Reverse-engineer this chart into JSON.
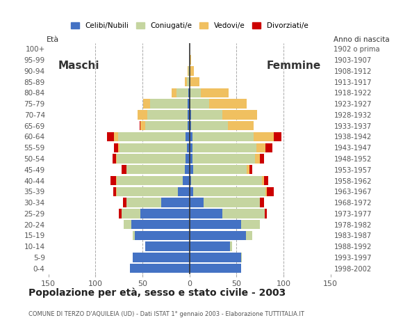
{
  "age_groups": [
    "0-4",
    "5-9",
    "10-14",
    "15-19",
    "20-24",
    "25-29",
    "30-34",
    "35-39",
    "40-44",
    "45-49",
    "50-54",
    "55-59",
    "60-64",
    "65-69",
    "70-74",
    "75-79",
    "80-84",
    "85-89",
    "90-94",
    "95-99",
    "100+"
  ],
  "birth_years": [
    "1998-2002",
    "1993-1997",
    "1988-1992",
    "1983-1987",
    "1978-1982",
    "1973-1977",
    "1968-1972",
    "1963-1967",
    "1958-1962",
    "1953-1957",
    "1948-1952",
    "1943-1947",
    "1938-1942",
    "1933-1937",
    "1928-1932",
    "1923-1927",
    "1918-1922",
    "1913-1917",
    "1908-1912",
    "1903-1907",
    "1902 o prima"
  ],
  "males": {
    "celibi": [
      63,
      60,
      47,
      58,
      62,
      52,
      30,
      12,
      7,
      5,
      4,
      3,
      4,
      2,
      2,
      2,
      1,
      0,
      0,
      0,
      0
    ],
    "coniugati": [
      0,
      0,
      0,
      2,
      8,
      20,
      37,
      65,
      70,
      62,
      73,
      71,
      72,
      45,
      43,
      40,
      13,
      3,
      1,
      0,
      0
    ],
    "vedovi": [
      0,
      0,
      0,
      0,
      0,
      0,
      0,
      1,
      1,
      0,
      1,
      2,
      4,
      5,
      10,
      7,
      5,
      2,
      1,
      0,
      0
    ],
    "divorziati": [
      0,
      0,
      0,
      0,
      0,
      3,
      4,
      3,
      6,
      5,
      4,
      4,
      8,
      1,
      0,
      0,
      0,
      0,
      0,
      0,
      0
    ]
  },
  "females": {
    "nubili": [
      55,
      55,
      43,
      60,
      55,
      35,
      15,
      4,
      2,
      4,
      3,
      3,
      3,
      2,
      2,
      1,
      1,
      0,
      0,
      0,
      0
    ],
    "coniugate": [
      0,
      1,
      2,
      7,
      20,
      45,
      60,
      77,
      75,
      57,
      67,
      68,
      65,
      39,
      33,
      20,
      11,
      1,
      0,
      0,
      0
    ],
    "vedove": [
      0,
      0,
      0,
      0,
      0,
      0,
      0,
      1,
      2,
      3,
      5,
      10,
      22,
      27,
      37,
      40,
      30,
      10,
      5,
      2,
      0
    ],
    "divorziate": [
      0,
      0,
      0,
      0,
      0,
      2,
      4,
      8,
      5,
      3,
      4,
      7,
      8,
      0,
      0,
      0,
      0,
      0,
      0,
      0,
      0
    ]
  },
  "colors": {
    "celibi": "#4472C4",
    "coniugati": "#c5d5a0",
    "vedovi": "#f0c060",
    "divorziati": "#CC0000"
  },
  "title": "Popolazione per età, sesso e stato civile - 2003",
  "subtitle": "COMUNE DI TERZO D'AQUILEIA (UD) - Dati ISTAT 1° gennaio 2003 - Elaborazione TUTTITALIA.IT",
  "xlabel_left": "Maschi",
  "xlabel_right": "Femmine",
  "ylabel_left": "Età",
  "ylabel_right": "Anno di nascita",
  "xlim": 150,
  "legend_labels": [
    "Celibi/Nubili",
    "Coniugati/e",
    "Vedovi/e",
    "Divorziati/e"
  ],
  "background_color": "#ffffff"
}
